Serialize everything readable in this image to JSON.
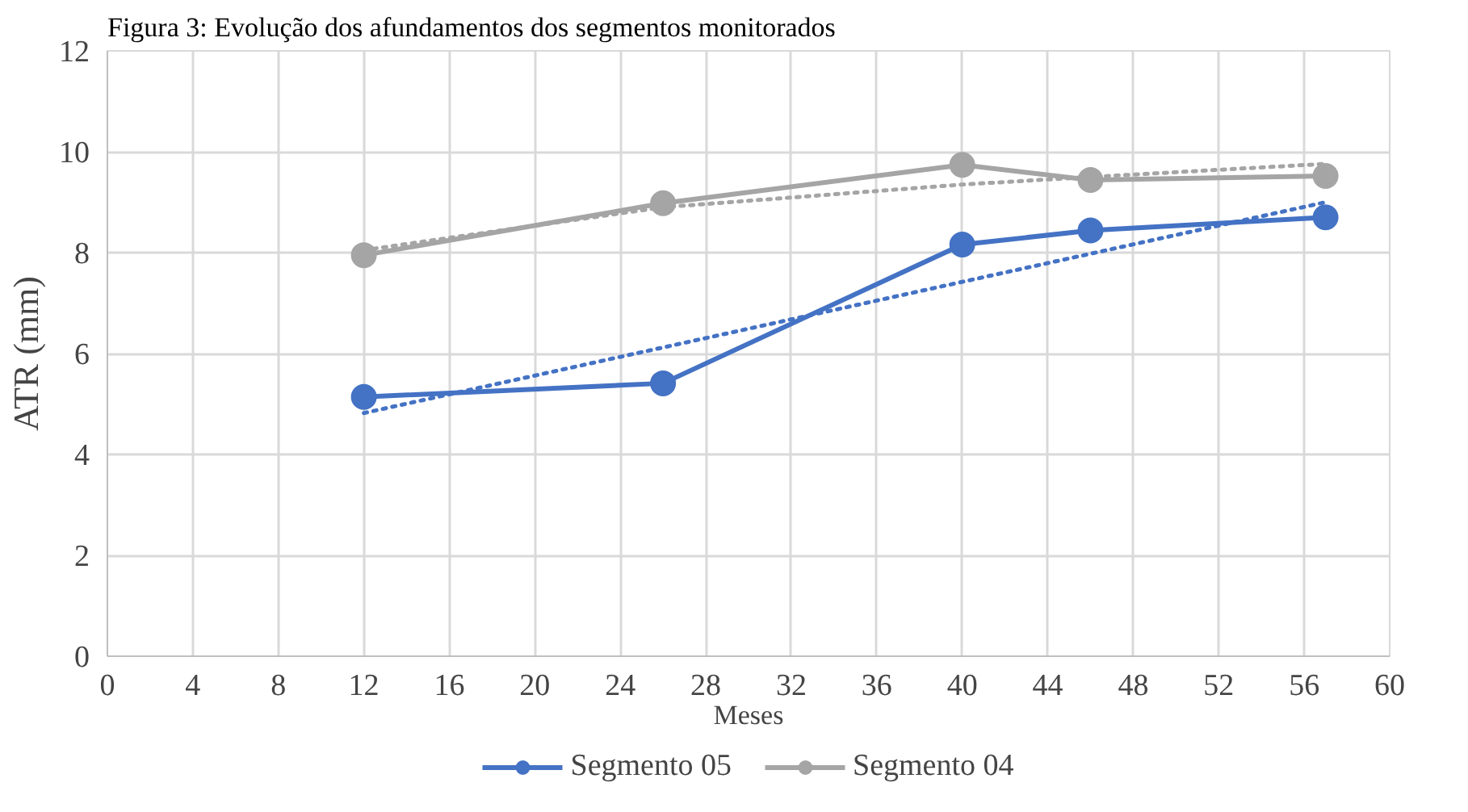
{
  "chart_data": {
    "type": "line",
    "title": "Figura 3: Evolução dos afundamentos dos segmentos monitorados",
    "xlabel": "Meses",
    "ylabel": "ATR (mm)",
    "x": [
      12,
      26,
      40,
      46,
      57
    ],
    "series": [
      {
        "name": "Segmento 05",
        "color": "#4472c4",
        "values": [
          5.14,
          5.41,
          8.16,
          8.44,
          8.7
        ],
        "marker": "circle",
        "line_style": "solid"
      },
      {
        "name": "Segmento 04",
        "color": "#a5a5a5",
        "values": [
          7.95,
          8.98,
          9.74,
          9.44,
          9.52
        ],
        "marker": "circle",
        "line_style": "solid"
      },
      {
        "color": "#4472c4",
        "x": [
          12,
          57
        ],
        "values": [
          4.82,
          9.0
        ],
        "marker": "none",
        "line_style": "dotted"
      },
      {
        "color": "#a5a5a5",
        "x": [
          12,
          26,
          40,
          46,
          57
        ],
        "values": [
          8.05,
          8.9,
          9.35,
          9.5,
          9.76
        ],
        "marker": "none",
        "line_style": "dotted"
      }
    ],
    "xlim": [
      0,
      60
    ],
    "xticks": [
      0,
      4,
      8,
      12,
      16,
      20,
      24,
      28,
      32,
      36,
      40,
      44,
      48,
      52,
      56,
      60
    ],
    "ylim": [
      0,
      12
    ],
    "yticks": [
      0,
      2,
      4,
      6,
      8,
      10,
      12
    ],
    "grid": true,
    "legend": "bottom"
  }
}
